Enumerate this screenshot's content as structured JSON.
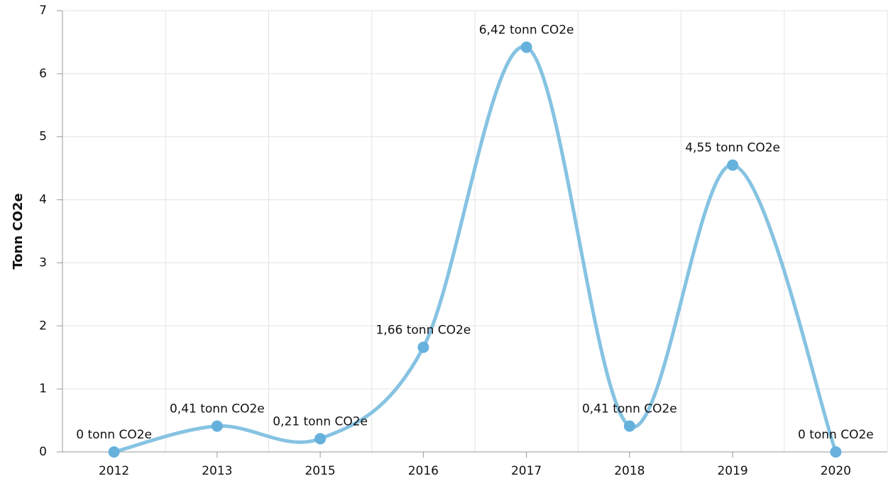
{
  "chart_data": {
    "type": "line",
    "y_axis_label": "Tonn CO2e",
    "categories": [
      "2012",
      "2013",
      "2015",
      "2016",
      "2017",
      "2018",
      "2019",
      "2020"
    ],
    "series": [
      {
        "name": "Tonn CO2e",
        "color": "#86c3e2",
        "marker_color": "#66b1dc",
        "values": [
          0,
          0.41,
          0.21,
          1.66,
          6.42,
          0.41,
          4.55,
          0
        ],
        "value_labels": [
          "0 tonn CO2e",
          "0,41 tonn CO2e",
          "0,21 tonn CO2e",
          "1,66 tonn CO2e",
          "6,42 tonn CO2e",
          "0,41 tonn CO2e",
          "4,55 tonn CO2e",
          "0 tonn CO2e"
        ]
      }
    ],
    "ylim": [
      0,
      7
    ],
    "yticks": [
      0,
      1,
      2,
      3,
      4,
      5,
      6,
      7
    ],
    "grid": true,
    "smooth": true
  }
}
